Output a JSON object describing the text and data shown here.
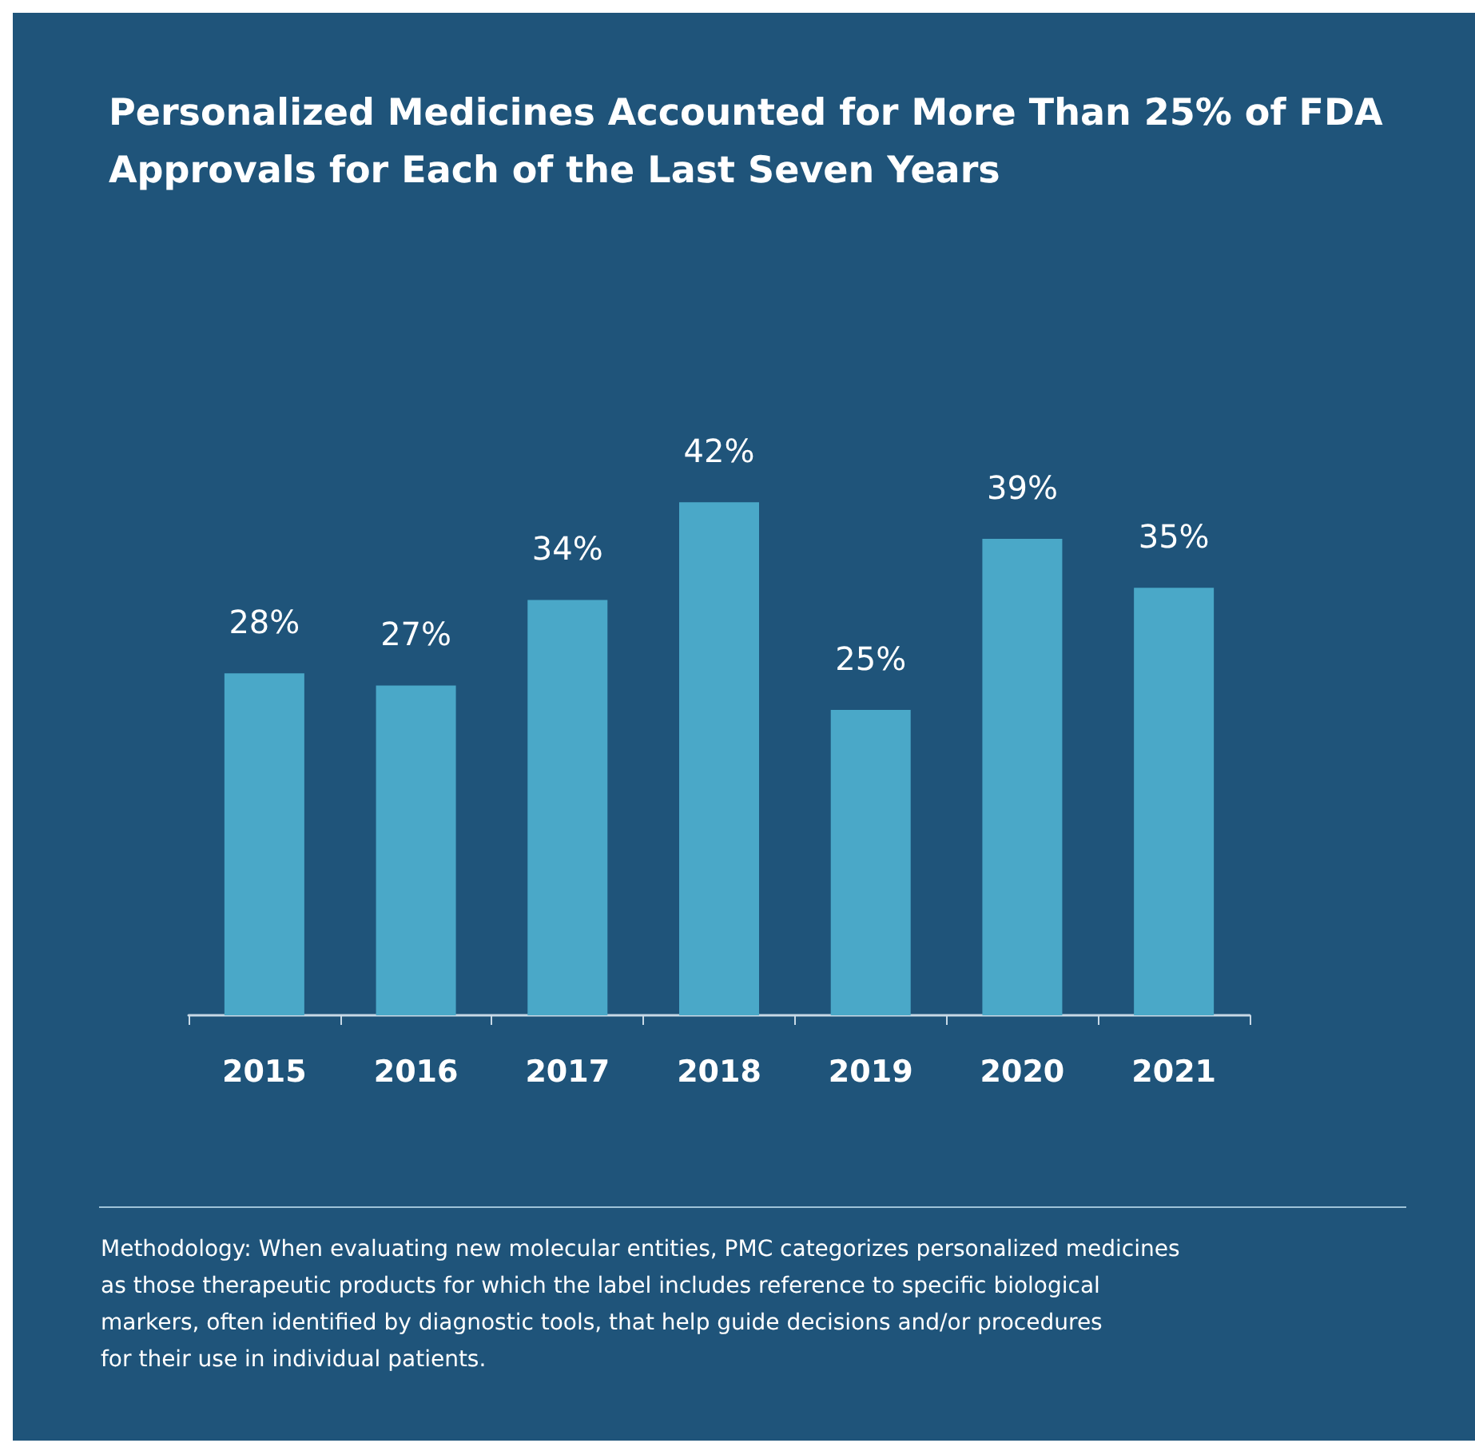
{
  "chart_data": {
    "type": "bar",
    "title": "Personalized Medicines Accounted for More Than 25% of FDA Approvals for Each of the Last Seven Years",
    "categories": [
      "2015",
      "2016",
      "2017",
      "2018",
      "2019",
      "2020",
      "2021"
    ],
    "values": [
      28,
      27,
      34,
      42,
      25,
      39,
      35
    ],
    "value_labels": [
      "28%",
      "27%",
      "34%",
      "42%",
      "25%",
      "39%",
      "35%"
    ],
    "color": "#4aa8c8",
    "annotations": [
      "Methodology: When evaluating new molecular entities, PMC categorizes personalized medicines as those therapeutic products for which the label includes reference to specific biological markers, often identified by diagnostic tools, that help guide decisions and/or procedures for their use in individual patients."
    ]
  }
}
